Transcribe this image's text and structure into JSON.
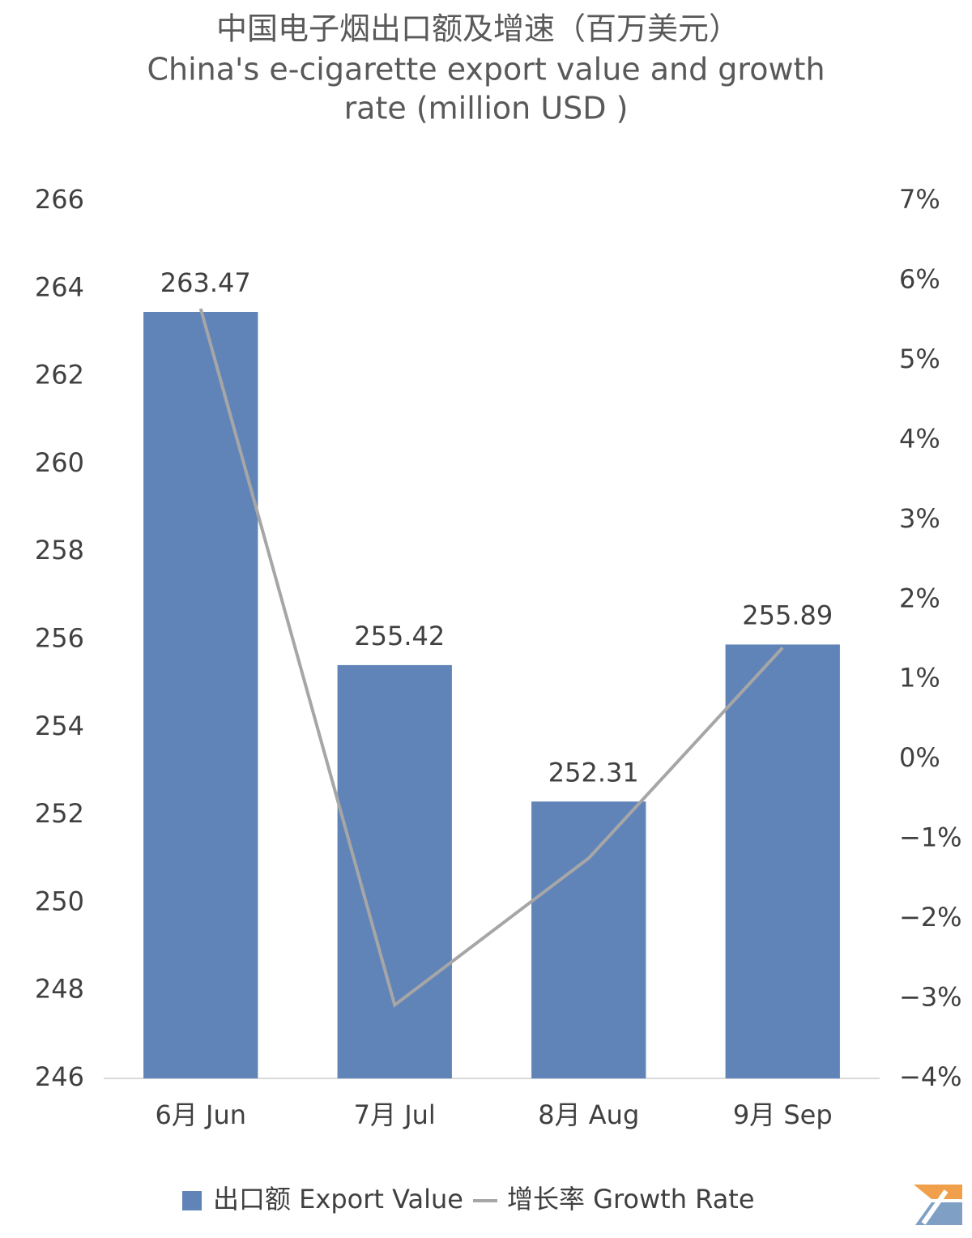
{
  "chart_data": {
    "type": "bar_line",
    "title": [
      "中国电子烟出口额及增速（百万美元）",
      "China's e-cigarette export value and growth",
      "rate (million USD )"
    ],
    "categories": [
      "6月 Jun",
      "7月 Jul",
      "8月 Aug",
      "9月 Sep"
    ],
    "series": [
      {
        "name": "出口额 Export Value",
        "type": "bar",
        "color": "#6084b8",
        "values": [
          263.47,
          255.42,
          252.31,
          255.89
        ]
      },
      {
        "name": "增长率 Growth Rate",
        "type": "line",
        "axis": "y2",
        "color": "#a6a6a6",
        "values": [
          5.65,
          -3.08,
          -1.24,
          1.4
        ]
      }
    ],
    "ylim": [
      246,
      266
    ],
    "yticks": [
      246,
      248,
      250,
      252,
      254,
      256,
      258,
      260,
      262,
      264,
      266
    ],
    "y2lim": [
      -4,
      7
    ],
    "y2ticks": [
      {
        "value": -4,
        "label": "−4%"
      },
      {
        "value": -3,
        "label": "−3%"
      },
      {
        "value": -2,
        "label": "−2%"
      },
      {
        "value": -1,
        "label": "−1%"
      },
      {
        "value": 0,
        "label": "0%"
      },
      {
        "value": 1,
        "label": "1%"
      },
      {
        "value": 2,
        "label": "2%"
      },
      {
        "value": 3,
        "label": "3%"
      },
      {
        "value": 4,
        "label": "4%"
      },
      {
        "value": 5,
        "label": "5%"
      },
      {
        "value": 6,
        "label": "6%"
      },
      {
        "value": 7,
        "label": "7%"
      }
    ],
    "legend": "bottom",
    "grid": false
  }
}
